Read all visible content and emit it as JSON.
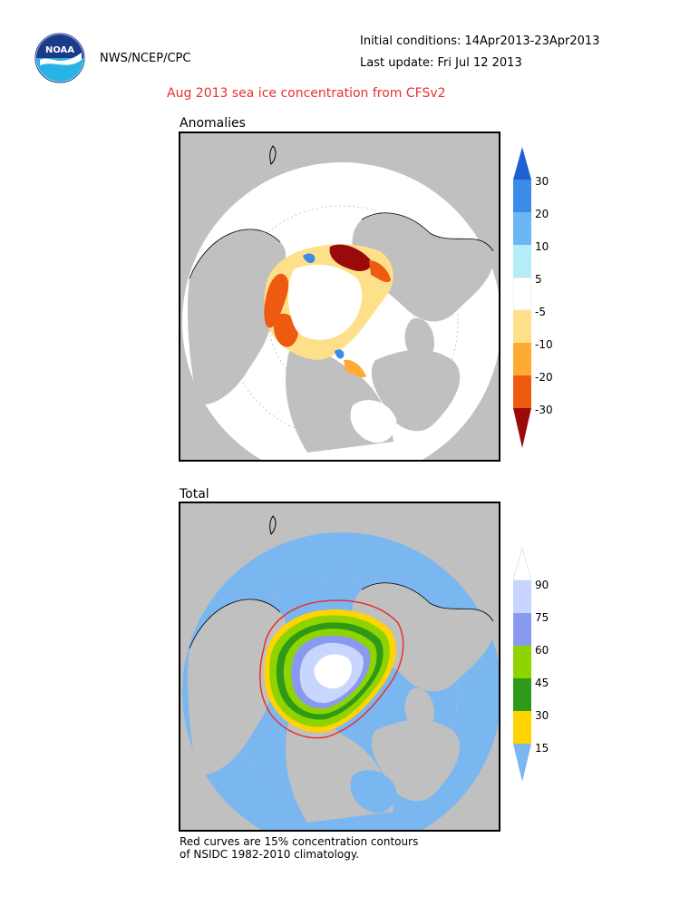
{
  "header": {
    "org": "NWS/NCEP/CPC",
    "initial_conditions": "Initial conditions: 14Apr2013-23Apr2013",
    "last_update": "Last update: Fri Jul 12 2013",
    "logo_text": "NOAA"
  },
  "title": "Aug 2013 sea ice concentration from CFSv2",
  "panels": {
    "anomalies": {
      "label": "Anomalies",
      "colorbar": {
        "ticks": [
          "30",
          "20",
          "10",
          "5",
          "-5",
          "-10",
          "-20",
          "-30"
        ],
        "colors": [
          "#1f5fcf",
          "#3b8be8",
          "#6bb6f4",
          "#b4ecf8",
          "#ffffff",
          "#ffe08a",
          "#ffaa33",
          "#ee5a10",
          "#d61a0a",
          "#9b0a0a"
        ]
      }
    },
    "total": {
      "label": "Total",
      "colorbar": {
        "ticks": [
          "90",
          "75",
          "60",
          "45",
          "30",
          "15"
        ],
        "colors": [
          "#ffffff",
          "#c8d6ff",
          "#8a99f0",
          "#8fd400",
          "#2f9a18",
          "#ffd400",
          "#7ab6f0"
        ]
      }
    }
  },
  "footnote": {
    "line1": "Red curves are 15% concentration contours",
    "line2": "of NSIDC 1982-2010 climatology."
  },
  "colors": {
    "title": "#e8312f",
    "land": "#c0c0c0",
    "ocean": "#7ab6f0",
    "contour": "#e8312f"
  }
}
